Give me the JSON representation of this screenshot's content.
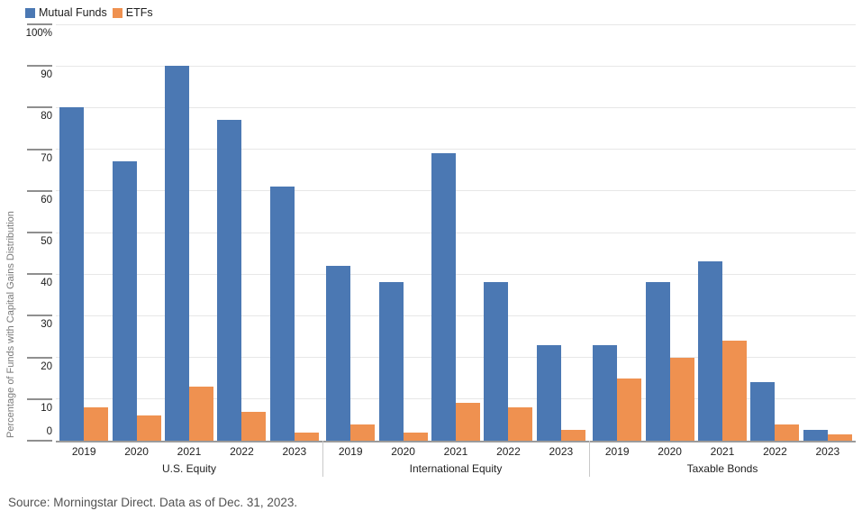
{
  "legend": {
    "items": [
      {
        "label": "Mutual Funds",
        "color": "#4b78b3"
      },
      {
        "label": "ETFs",
        "color": "#ef9150"
      }
    ]
  },
  "y_axis": {
    "title": "Percentage of Funds with Capital Gains Distribution",
    "ticks": [
      {
        "value": 100,
        "label": "100%"
      },
      {
        "value": 90,
        "label": "90"
      },
      {
        "value": 80,
        "label": "80"
      },
      {
        "value": 70,
        "label": "70"
      },
      {
        "value": 60,
        "label": "60"
      },
      {
        "value": 50,
        "label": "50"
      },
      {
        "value": 40,
        "label": "40"
      },
      {
        "value": 30,
        "label": "30"
      },
      {
        "value": 20,
        "label": "20"
      },
      {
        "value": 10,
        "label": "10"
      },
      {
        "value": 0,
        "label": "0"
      }
    ]
  },
  "source_note": "Source: Morningstar Direct. Data as of Dec. 31, 2023.",
  "chart_data": {
    "type": "bar",
    "title": "",
    "xlabel": "",
    "ylabel": "Percentage of Funds with Capital Gains Distribution",
    "ylim": [
      0,
      100
    ],
    "gridlines": true,
    "legend_position": "top-left",
    "categories_years": [
      "2019",
      "2020",
      "2021",
      "2022",
      "2023"
    ],
    "groups": [
      {
        "category": "U.S. Equity",
        "series": [
          {
            "name": "Mutual Funds",
            "values": [
              80,
              67,
              90,
              77,
              61
            ]
          },
          {
            "name": "ETFs",
            "values": [
              8,
              6,
              13,
              7,
              2
            ]
          }
        ]
      },
      {
        "category": "International Equity",
        "series": [
          {
            "name": "Mutual Funds",
            "values": [
              42,
              38,
              69,
              38,
              23
            ]
          },
          {
            "name": "ETFs",
            "values": [
              4,
              2,
              9,
              8,
              2.5
            ]
          }
        ]
      },
      {
        "category": "Taxable Bonds",
        "series": [
          {
            "name": "Mutual Funds",
            "values": [
              23,
              38,
              43,
              14,
              2.5
            ]
          },
          {
            "name": "ETFs",
            "values": [
              15,
              20,
              24,
              4,
              1.5
            ]
          }
        ]
      }
    ],
    "colors": {
      "Mutual Funds": "#4b78b3",
      "ETFs": "#ef9150"
    }
  }
}
